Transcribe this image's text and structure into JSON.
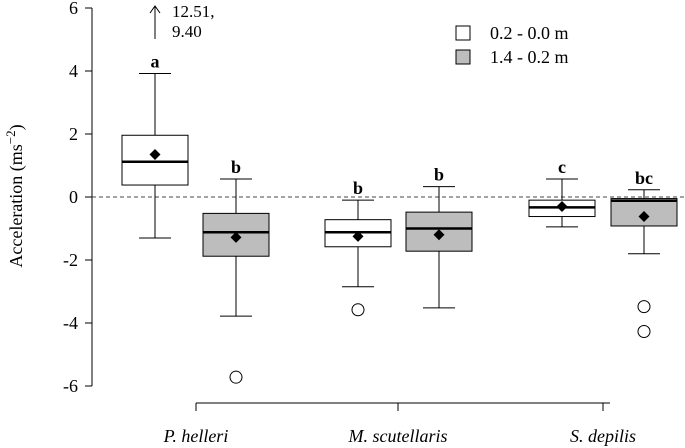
{
  "chart_data": {
    "type": "box",
    "ylabel": "Acceleration  (ms",
    "ylabel_exponent": "−2",
    "ylabel_close": ")",
    "ylim": [
      -6,
      6
    ],
    "yticks": [
      -6,
      -4,
      -2,
      0,
      2,
      4,
      6
    ],
    "ytick_labels": [
      "-6",
      "-4",
      "-2",
      "0",
      "2",
      "4",
      "6"
    ],
    "reference_line": {
      "y": 0,
      "style": "dashed"
    },
    "categories": [
      "P. helleri",
      "M. scutellaris",
      "S. depilis"
    ],
    "series": [
      {
        "name": "0.2 - 0.0 m",
        "color": "#ffffff"
      },
      {
        "name": "1.4 - 0.2 m",
        "color": "#bdbdbd"
      }
    ],
    "legend_position": "top-right",
    "boxes": [
      {
        "category": "P. helleri",
        "series": "0.2 - 0.0 m",
        "whisker_low": -1.3,
        "q1": 0.38,
        "median": 1.12,
        "q3": 1.96,
        "whisker_high": 3.92,
        "mean": 1.35,
        "outliers": [],
        "letter": "a"
      },
      {
        "category": "P. helleri",
        "series": "1.4 - 0.2 m",
        "whisker_low": -3.78,
        "q1": -1.88,
        "median": -1.12,
        "q3": -0.52,
        "whisker_high": 0.57,
        "mean": -1.28,
        "outliers": [
          -5.72
        ],
        "letter": "b"
      },
      {
        "category": "M. scutellaris",
        "series": "0.2 - 0.0 m",
        "whisker_low": -2.85,
        "q1": -1.58,
        "median": -1.12,
        "q3": -0.72,
        "whisker_high": -0.1,
        "mean": -1.25,
        "outliers": [
          -3.58
        ],
        "letter": "b"
      },
      {
        "category": "M. scutellaris",
        "series": "1.4 - 0.2 m",
        "whisker_low": -3.52,
        "q1": -1.72,
        "median": -1.0,
        "q3": -0.48,
        "whisker_high": 0.33,
        "mean": -1.2,
        "outliers": [],
        "letter": "b"
      },
      {
        "category": "S. depilis",
        "series": "0.2 - 0.0 m",
        "whisker_low": -0.95,
        "q1": -0.62,
        "median": -0.33,
        "q3": -0.1,
        "whisker_high": 0.57,
        "mean": -0.3,
        "outliers": [],
        "letter": "c"
      },
      {
        "category": "S. depilis",
        "series": "1.4 - 0.2 m",
        "whisker_low": -1.8,
        "q1": -0.92,
        "median": -0.12,
        "q3": -0.05,
        "whisker_high": 0.23,
        "mean": -0.62,
        "outliers": [
          -3.48,
          -4.27
        ],
        "letter": "bc"
      }
    ],
    "annotations": [
      {
        "text_line1": "12.51,",
        "text_line2": "9.40",
        "symbol": "↑"
      }
    ]
  }
}
